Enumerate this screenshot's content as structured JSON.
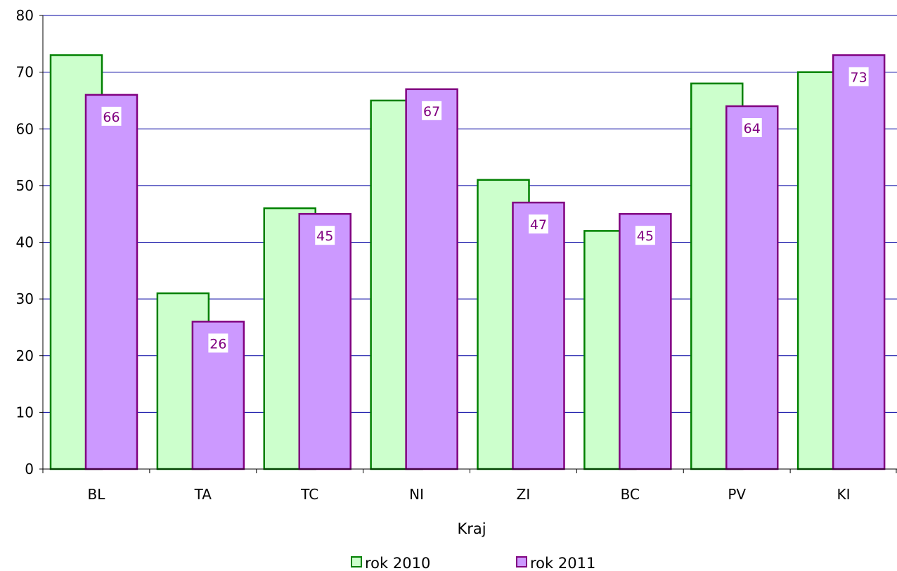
{
  "chart_data": {
    "type": "bar",
    "xlabel": "Kraj",
    "ylabel": "",
    "ylim": [
      0,
      80
    ],
    "yticks": [
      0,
      10,
      20,
      30,
      40,
      50,
      60,
      70,
      80
    ],
    "categories": [
      "BL",
      "TA",
      "TC",
      "NI",
      "ZI",
      "BC",
      "PV",
      "KI"
    ],
    "series": [
      {
        "name": "rok 2010",
        "values": [
          73,
          31,
          46,
          65,
          51,
          42,
          68,
          70
        ],
        "fill": "#ccffcc",
        "stroke": "#008000",
        "show_labels": false
      },
      {
        "name": "rok 2011",
        "values": [
          66,
          26,
          45,
          67,
          47,
          45,
          64,
          73
        ],
        "fill": "#cc99ff",
        "stroke": "#800080",
        "show_labels": true,
        "label_color": "#800080"
      }
    ],
    "grid": true,
    "grid_color": "#0000a0",
    "legend_position": "bottom"
  }
}
